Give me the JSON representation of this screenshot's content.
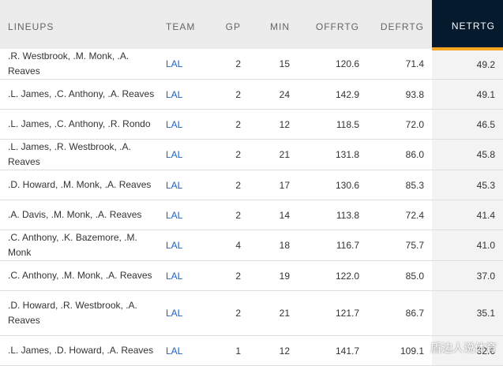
{
  "columns": {
    "lineups": "LINEUPS",
    "team": "TEAM",
    "gp": "GP",
    "min": "MIN",
    "offrtg": "OFFRTG",
    "defrtg": "DEFRTG",
    "netrtg": "NETRTG"
  },
  "rows": [
    {
      "lineup": ".R. Westbrook, .M. Monk, .A. Reaves",
      "team": "LAL",
      "gp": "2",
      "min": "15",
      "offrtg": "120.6",
      "defrtg": "71.4",
      "netrtg": "49.2"
    },
    {
      "lineup": ".L. James, .C. Anthony, .A. Reaves",
      "team": "LAL",
      "gp": "2",
      "min": "24",
      "offrtg": "142.9",
      "defrtg": "93.8",
      "netrtg": "49.1"
    },
    {
      "lineup": ".L. James, .C. Anthony, .R. Rondo",
      "team": "LAL",
      "gp": "2",
      "min": "12",
      "offrtg": "118.5",
      "defrtg": "72.0",
      "netrtg": "46.5"
    },
    {
      "lineup": ".L. James, .R. Westbrook, .A. Reaves",
      "team": "LAL",
      "gp": "2",
      "min": "21",
      "offrtg": "131.8",
      "defrtg": "86.0",
      "netrtg": "45.8"
    },
    {
      "lineup": ".D. Howard, .M. Monk, .A. Reaves",
      "team": "LAL",
      "gp": "2",
      "min": "17",
      "offrtg": "130.6",
      "defrtg": "85.3",
      "netrtg": "45.3"
    },
    {
      "lineup": ".A. Davis, .M. Monk, .A. Reaves",
      "team": "LAL",
      "gp": "2",
      "min": "14",
      "offrtg": "113.8",
      "defrtg": "72.4",
      "netrtg": "41.4"
    },
    {
      "lineup": ".C. Anthony, .K. Bazemore, .M. Monk",
      "team": "LAL",
      "gp": "4",
      "min": "18",
      "offrtg": "116.7",
      "defrtg": "75.7",
      "netrtg": "41.0"
    },
    {
      "lineup": ".C. Anthony, .M. Monk, .A. Reaves",
      "team": "LAL",
      "gp": "2",
      "min": "19",
      "offrtg": "122.0",
      "defrtg": "85.0",
      "netrtg": "37.0"
    },
    {
      "lineup": ".D. Howard, .R. Westbrook, .A. Reaves",
      "team": "LAL",
      "gp": "2",
      "min": "21",
      "offrtg": "121.7",
      "defrtg": "86.7",
      "netrtg": "35.1"
    },
    {
      "lineup": ".L. James, .D. Howard, .A. Reaves",
      "team": "LAL",
      "gp": "1",
      "min": "12",
      "offrtg": "141.7",
      "defrtg": "109.1",
      "netrtg": "32.6"
    }
  ],
  "watermark": "盾边人说体育"
}
